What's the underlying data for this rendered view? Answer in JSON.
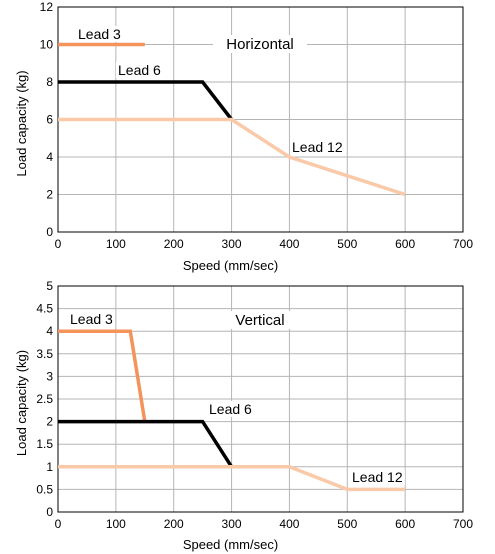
{
  "chart_data": [
    {
      "type": "line",
      "title": "Horizontal",
      "xlabel": "Speed (mm/sec)",
      "ylabel": "Load capacity (kg)",
      "xlim": [
        0,
        700
      ],
      "ylim": [
        0,
        12
      ],
      "xticks": [
        0,
        100,
        200,
        300,
        400,
        500,
        600,
        700
      ],
      "yticks": [
        0,
        2,
        4,
        6,
        8,
        10,
        12
      ],
      "grid": true,
      "series": [
        {
          "name": "Lead 3",
          "color": "#f4935a",
          "points": [
            [
              0,
              10
            ],
            [
              150,
              10
            ]
          ]
        },
        {
          "name": "Lead 6",
          "color": "#000000",
          "points": [
            [
              0,
              8
            ],
            [
              250,
              8
            ],
            [
              300,
              6
            ]
          ]
        },
        {
          "name": "Lead 12",
          "color": "#f9c9a8",
          "points": [
            [
              0,
              6
            ],
            [
              300,
              6
            ],
            [
              400,
              4
            ],
            [
              600,
              2
            ]
          ]
        }
      ]
    },
    {
      "type": "line",
      "title": "Vertical",
      "xlabel": "Speed (mm/sec)",
      "ylabel": "Load capacity (kg)",
      "xlim": [
        0,
        700
      ],
      "ylim": [
        0,
        5
      ],
      "xticks": [
        0,
        100,
        200,
        300,
        400,
        500,
        600,
        700
      ],
      "yticks": [
        0,
        0.5,
        1,
        1.5,
        2,
        2.5,
        3,
        3.5,
        4,
        4.5,
        5
      ],
      "grid": true,
      "series": [
        {
          "name": "Lead 3",
          "color": "#f4935a",
          "points": [
            [
              0,
              4
            ],
            [
              125,
              4
            ],
            [
              150,
              2
            ]
          ]
        },
        {
          "name": "Lead 6",
          "color": "#000000",
          "points": [
            [
              0,
              2
            ],
            [
              250,
              2
            ],
            [
              300,
              1
            ]
          ]
        },
        {
          "name": "Lead 12",
          "color": "#f9c9a8",
          "points": [
            [
              0,
              1
            ],
            [
              400,
              1
            ],
            [
              500,
              0.5
            ],
            [
              600,
              0.5
            ]
          ]
        }
      ]
    }
  ]
}
